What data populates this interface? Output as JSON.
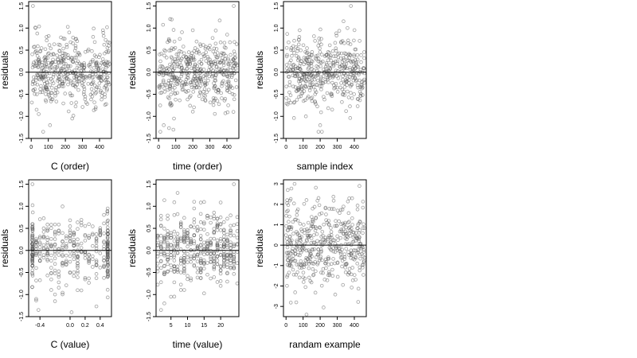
{
  "style": {
    "point_color": "#555555",
    "point_opacity": 0.55,
    "zero_line_color": "#000000"
  },
  "chart_data": [
    {
      "id": "p1",
      "type": "scatter",
      "title": "",
      "xlabel": "C (order)",
      "ylabel": "residuals",
      "xlim": [
        -15,
        470
      ],
      "ylim": [
        -1.5,
        1.6
      ],
      "xticks": [
        0,
        100,
        200,
        300,
        400
      ],
      "xtick_labels": [
        "0",
        "100",
        "200",
        "300",
        "400"
      ],
      "yticks": [
        -1.5,
        -1.0,
        -0.5,
        0.0,
        0.5,
        1.0,
        1.5
      ],
      "ytick_labels": [
        "-1.5",
        "-1.0",
        "-0.5",
        "0.0",
        "0.5",
        "1.0",
        "1.5"
      ],
      "hline": 0,
      "grid": false,
      "n_points": 460,
      "x_range": [
        0,
        460
      ],
      "y_spread": 0.38,
      "points_highlight": [
        [
          10,
          1.5
        ],
        [
          70,
          -1.35
        ],
        [
          110,
          -1.2
        ],
        [
          240,
          -1.05
        ],
        [
          420,
          0.95
        ],
        [
          25,
          1.0
        ],
        [
          90,
          0.8
        ]
      ]
    },
    {
      "id": "p2",
      "type": "scatter",
      "title": "",
      "xlabel": "time (order)",
      "ylabel": "residuals",
      "xlim": [
        -15,
        470
      ],
      "ylim": [
        -1.5,
        1.6
      ],
      "xticks": [
        0,
        100,
        200,
        300,
        400
      ],
      "xtick_labels": [
        "0",
        "100",
        "200",
        "300",
        "400"
      ],
      "yticks": [
        -1.5,
        -1.0,
        -0.5,
        0.0,
        0.5,
        1.0,
        1.5
      ],
      "ytick_labels": [
        "-1.5",
        "-1.0",
        "-0.5",
        "0.0",
        "0.5",
        "1.0",
        "1.5"
      ],
      "hline": 0,
      "grid": false,
      "n_points": 460,
      "x_range": [
        0,
        460
      ],
      "y_spread": 0.38,
      "points_highlight": [
        [
          440,
          1.5
        ],
        [
          10,
          -1.35
        ],
        [
          30,
          -1.2
        ],
        [
          90,
          -1.05
        ],
        [
          200,
          0.95
        ],
        [
          60,
          0.75
        ]
      ]
    },
    {
      "id": "p3",
      "type": "scatter",
      "title": "",
      "xlabel": "sample index",
      "ylabel": "residuals",
      "xlim": [
        -15,
        470
      ],
      "ylim": [
        -1.5,
        1.6
      ],
      "xticks": [
        0,
        100,
        200,
        300,
        400
      ],
      "xtick_labels": [
        "0",
        "100",
        "200",
        "300",
        "400"
      ],
      "yticks": [
        -1.5,
        -1.0,
        -0.5,
        0.0,
        0.5,
        1.0,
        1.5
      ],
      "ytick_labels": [
        "-1.5",
        "-1.0",
        "-0.5",
        "0.0",
        "0.5",
        "1.0",
        "1.5"
      ],
      "hline": 0,
      "grid": false,
      "n_points": 460,
      "x_range": [
        0,
        460
      ],
      "y_spread": 0.38,
      "points_highlight": [
        [
          380,
          1.5
        ],
        [
          190,
          -1.35
        ],
        [
          210,
          -1.35
        ],
        [
          200,
          -1.2
        ],
        [
          360,
          1.0
        ],
        [
          80,
          0.95
        ]
      ]
    },
    {
      "id": "p4",
      "type": "scatter",
      "title": "",
      "xlabel": "C (value)",
      "ylabel": "residuals",
      "xlim": [
        -0.55,
        0.55
      ],
      "ylim": [
        -1.5,
        1.6
      ],
      "xticks": [
        -0.4,
        0.0,
        0.2,
        0.4
      ],
      "xtick_labels": [
        "-0.4",
        "0.0",
        "0.2",
        "0.4"
      ],
      "yticks": [
        -1.5,
        -1.0,
        -0.5,
        0.0,
        0.5,
        1.0,
        1.5
      ],
      "ytick_labels": [
        "-1.5",
        "-1.0",
        "-0.5",
        "0.0",
        "0.5",
        "1.0",
        "1.5"
      ],
      "hline": 0,
      "grid": false,
      "n_points": 400,
      "x_range": [
        -0.5,
        0.5
      ],
      "y_spread": 0.38,
      "x_clusters": [
        -0.5,
        0.5
      ],
      "points_highlight": [
        [
          -0.5,
          1.5
        ],
        [
          -0.42,
          -1.35
        ],
        [
          -0.45,
          -1.1
        ],
        [
          0.5,
          0.95
        ],
        [
          -0.2,
          -1.15
        ],
        [
          0.02,
          -1.4
        ]
      ]
    },
    {
      "id": "p5",
      "type": "scatter",
      "title": "",
      "xlabel": "time (value)",
      "ylabel": "residuals",
      "xlim": [
        0.5,
        25.5
      ],
      "ylim": [
        -1.5,
        1.6
      ],
      "xticks": [
        5,
        10,
        15,
        20
      ],
      "xtick_labels": [
        "5",
        "10",
        "15",
        "20"
      ],
      "yticks": [
        -1.5,
        -1.0,
        -0.5,
        0.0,
        0.5,
        1.0,
        1.5
      ],
      "ytick_labels": [
        "-1.5",
        "-1.0",
        "-0.5",
        "0.0",
        "0.5",
        "1.0",
        "1.5"
      ],
      "hline": 0,
      "grid": false,
      "n_points": 450,
      "x_range": [
        1,
        25
      ],
      "y_spread": 0.38,
      "x_discrete": true,
      "points_highlight": [
        [
          24,
          1.5
        ],
        [
          2,
          -1.35
        ],
        [
          3,
          -1.2
        ],
        [
          12,
          0.95
        ],
        [
          5,
          -1.05
        ]
      ]
    },
    {
      "id": "p6",
      "type": "scatter",
      "title": "",
      "xlabel": "randam example",
      "ylabel": "residuals",
      "xlim": [
        -15,
        470
      ],
      "ylim": [
        -3.5,
        3.2
      ],
      "xticks": [
        0,
        100,
        200,
        300,
        400
      ],
      "xtick_labels": [
        "0",
        "100",
        "200",
        "300",
        "400"
      ],
      "yticks": [
        -3,
        -2,
        -1,
        0,
        1,
        2,
        3
      ],
      "ytick_labels": [
        "-3",
        "-2",
        "-1",
        "0",
        "1",
        "2",
        "3"
      ],
      "hline": 0,
      "grid": false,
      "n_points": 460,
      "x_range": [
        0,
        460
      ],
      "y_spread": 1.0,
      "points_highlight": [
        [
          10,
          2.7
        ],
        [
          50,
          3.0
        ],
        [
          430,
          2.9
        ],
        [
          220,
          -3.05
        ],
        [
          120,
          -3.4
        ],
        [
          60,
          -2.8
        ]
      ]
    }
  ]
}
